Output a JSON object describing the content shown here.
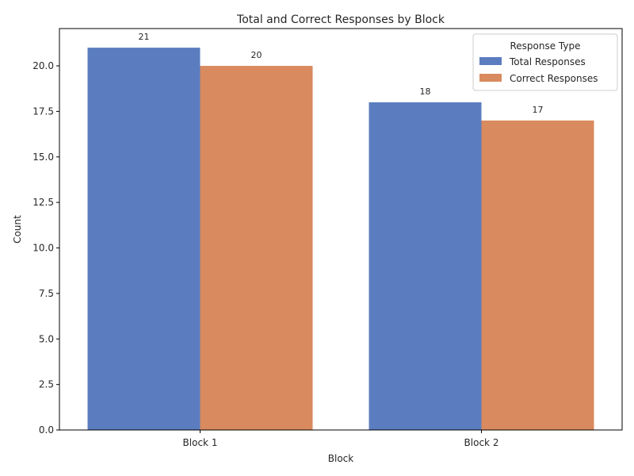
{
  "chart_data": {
    "type": "bar",
    "title": "Total and Correct Responses by Block",
    "xlabel": "Block",
    "ylabel": "Count",
    "categories": [
      "Block 1",
      "Block 2"
    ],
    "series": [
      {
        "name": "Total Responses",
        "values": [
          21,
          18
        ],
        "color": "#5b7dc0"
      },
      {
        "name": "Correct Responses",
        "values": [
          20,
          17
        ],
        "color": "#d98a5e"
      }
    ],
    "ylim": [
      0,
      22.05
    ],
    "yticks": [
      0.0,
      2.5,
      5.0,
      7.5,
      10.0,
      12.5,
      15.0,
      17.5,
      20.0
    ],
    "yticks_text": [
      "0.0",
      "2.5",
      "5.0",
      "7.5",
      "10.0",
      "12.5",
      "15.0",
      "17.5",
      "20.0"
    ],
    "legend": {
      "title": "Response Type",
      "position": "top-right"
    },
    "grid": false
  }
}
